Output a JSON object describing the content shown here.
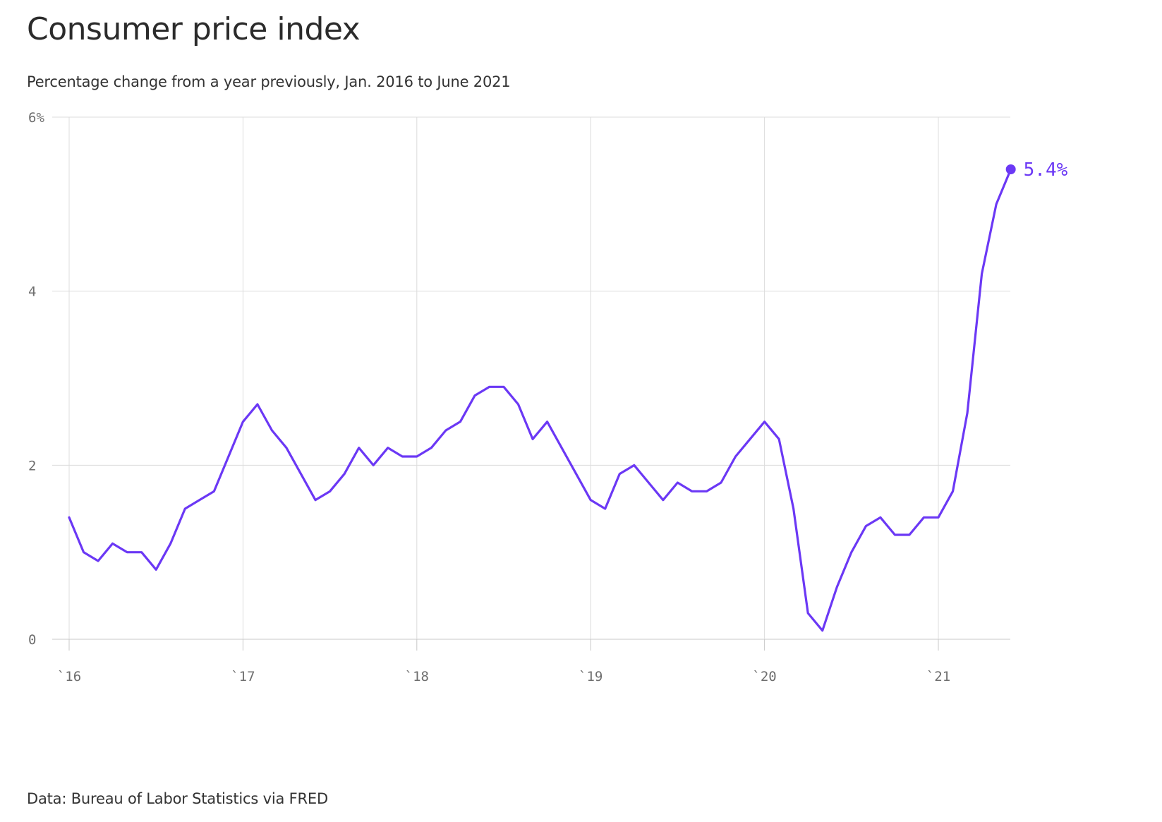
{
  "title": "Consumer price index",
  "subtitle": "Percentage change from a year previously, Jan. 2016 to June 2021",
  "source": "Data: Bureau of Labor Statistics via FRED",
  "colors": {
    "line": "#6b38f5",
    "grid": "#dcdcdc",
    "axis_text": "#6e6e6e"
  },
  "chart_data": {
    "type": "line",
    "x_start": "2016-01",
    "x_end": "2021-06",
    "ylim": [
      0,
      6
    ],
    "y_ticks": [
      0,
      2,
      4,
      6
    ],
    "y_tick_labels": [
      "0",
      "2",
      "4",
      "6%"
    ],
    "x_tick_labels": [
      "`16",
      "`17",
      "`18",
      "`19",
      "`20",
      "`21"
    ],
    "grid": true,
    "end_label": "5.4%",
    "series": [
      {
        "values": [
          1.4,
          1.0,
          0.9,
          1.1,
          1.0,
          1.0,
          0.8,
          1.1,
          1.5,
          1.6,
          1.7,
          2.1,
          2.5,
          2.7,
          2.4,
          2.2,
          1.9,
          1.6,
          1.7,
          1.9,
          2.2,
          2.0,
          2.2,
          2.1,
          2.1,
          2.2,
          2.4,
          2.5,
          2.8,
          2.9,
          2.9,
          2.7,
          2.3,
          2.5,
          2.2,
          1.9,
          1.6,
          1.5,
          1.9,
          2.0,
          1.8,
          1.6,
          1.8,
          1.7,
          1.7,
          1.8,
          2.1,
          2.3,
          2.5,
          2.3,
          1.5,
          0.3,
          0.1,
          0.6,
          1.0,
          1.3,
          1.4,
          1.2,
          1.2,
          1.4,
          1.4,
          1.7,
          2.6,
          4.2,
          5.0,
          5.4
        ]
      }
    ]
  }
}
